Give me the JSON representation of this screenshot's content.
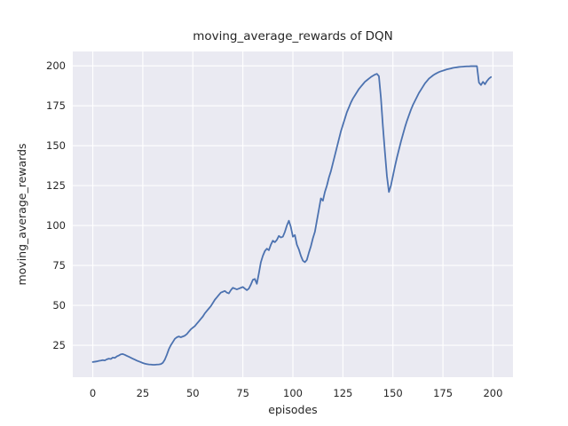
{
  "figure": {
    "background": "#FFFFFF",
    "axes_background": "#EAEAF2",
    "grid_color": "#FFFFFF",
    "text_color": "#262626"
  },
  "chart_data": {
    "type": "line",
    "title": "moving_average_rewards of DQN",
    "xlabel": "episodes",
    "ylabel": "moving_average_rewards",
    "x_ticks": [
      0,
      25,
      50,
      75,
      100,
      125,
      150,
      175,
      200
    ],
    "y_ticks": [
      25,
      50,
      75,
      100,
      125,
      150,
      175,
      200
    ],
    "xlim": [
      -10,
      210
    ],
    "ylim": [
      5,
      209
    ],
    "grid": true,
    "legend_position": "none",
    "style": "seaborn-darkgrid",
    "line_color": "#4C72B0",
    "line_width": 1.8,
    "series": [
      {
        "name": "moving_average_rewards",
        "x_start": 0,
        "x_step": 1,
        "values": [
          14.5,
          14.7,
          14.9,
          15.2,
          15.4,
          15.7,
          15.5,
          16.2,
          16.6,
          16.4,
          17.3,
          17.1,
          18.0,
          18.6,
          19.3,
          19.5,
          19.0,
          18.4,
          17.8,
          17.2,
          16.6,
          16.0,
          15.4,
          14.9,
          14.4,
          13.9,
          13.5,
          13.2,
          13.0,
          12.9,
          12.8,
          12.8,
          12.9,
          13.0,
          13.2,
          14.0,
          16.0,
          19.0,
          22.5,
          25.0,
          27.0,
          29.0,
          30.0,
          30.5,
          30.0,
          30.5,
          31.0,
          32.0,
          33.5,
          35.0,
          36.0,
          37.0,
          38.5,
          40.0,
          41.5,
          43.0,
          45.0,
          46.5,
          48.0,
          49.5,
          51.5,
          53.5,
          55.0,
          56.5,
          58.0,
          58.5,
          59.0,
          58.0,
          57.5,
          59.5,
          61.0,
          60.5,
          60.0,
          60.5,
          61.0,
          61.5,
          60.5,
          59.5,
          60.5,
          63.0,
          66.0,
          66.5,
          63.5,
          70.0,
          77.0,
          81.0,
          84.0,
          85.5,
          84.5,
          88.0,
          90.5,
          89.5,
          91.0,
          93.5,
          92.5,
          93.0,
          96.0,
          100.0,
          103.0,
          99.0,
          93.0,
          94.0,
          88.0,
          85.0,
          81.0,
          78.0,
          77.0,
          78.5,
          83.0,
          87.0,
          92.0,
          96.0,
          103.0,
          110.0,
          117.0,
          115.5,
          121.0,
          125.0,
          130.0,
          134.0,
          139.0,
          144.0,
          149.0,
          154.0,
          159.0,
          163.0,
          167.0,
          171.0,
          174.0,
          177.0,
          179.5,
          181.5,
          183.5,
          185.5,
          187.0,
          188.5,
          190.0,
          191.0,
          192.0,
          193.0,
          193.8,
          194.5,
          195.0,
          193.5,
          180.0,
          162.0,
          146.0,
          131.0,
          121.0,
          125.0,
          131.0,
          137.0,
          142.5,
          147.5,
          152.5,
          157.0,
          161.5,
          165.5,
          169.0,
          172.5,
          175.5,
          178.0,
          180.5,
          183.0,
          185.0,
          187.0,
          189.0,
          190.5,
          192.0,
          193.0,
          194.0,
          194.8,
          195.5,
          196.1,
          196.6,
          197.0,
          197.4,
          197.8,
          198.1,
          198.4,
          198.7,
          198.9,
          199.1,
          199.3,
          199.4,
          199.5,
          199.6,
          199.7,
          199.7,
          199.8,
          199.8,
          199.8,
          199.8,
          189.5,
          188.0,
          190.0,
          188.5,
          190.5,
          192.0,
          193.0
        ]
      }
    ]
  }
}
